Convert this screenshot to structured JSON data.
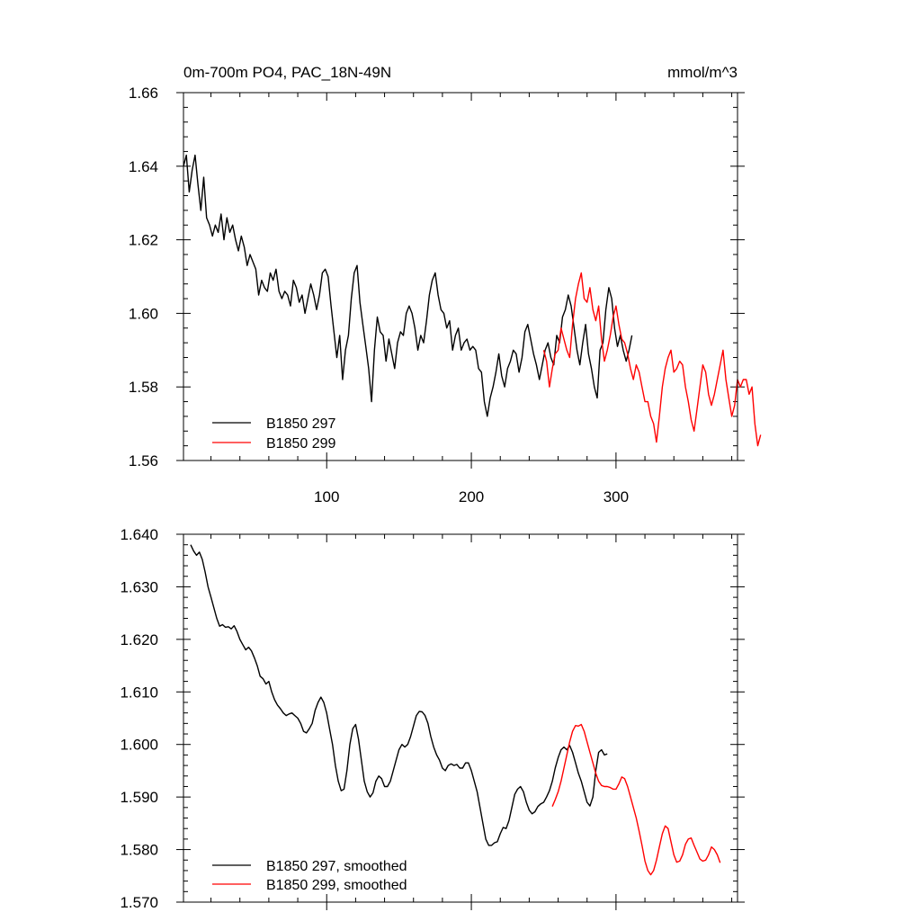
{
  "colors": {
    "run297": "#000000",
    "run299": "#ff0000",
    "axis": "#000000"
  },
  "chart_data": [
    {
      "type": "line",
      "title": "0m-700m PO4, PAC_18N-49N",
      "units": "mmol/m^3",
      "xlabel": "",
      "ylabel": "",
      "xlim": [
        1,
        384
      ],
      "ylim": [
        1.56,
        1.66
      ],
      "x_ticks": [
        100,
        200,
        300
      ],
      "x_tick_labels": [
        "100",
        "200",
        "300"
      ],
      "y_ticks": [
        1.56,
        1.58,
        1.6,
        1.62,
        1.64,
        1.66
      ],
      "y_tick_labels": [
        "1.56",
        "1.58",
        "1.60",
        "1.62",
        "1.64",
        "1.66"
      ],
      "grid": false,
      "legend_position": "bottom-left",
      "series": [
        {
          "name": "B1850 297",
          "color": "#000000",
          "x_start": 1,
          "x_step": 2,
          "values": [
            1.64,
            1.643,
            1.633,
            1.639,
            1.643,
            1.635,
            1.628,
            1.637,
            1.626,
            1.624,
            1.621,
            1.624,
            1.622,
            1.627,
            1.62,
            1.626,
            1.622,
            1.624,
            1.62,
            1.617,
            1.621,
            1.618,
            1.613,
            1.616,
            1.614,
            1.612,
            1.605,
            1.609,
            1.607,
            1.606,
            1.611,
            1.609,
            1.612,
            1.606,
            1.604,
            1.606,
            1.605,
            1.602,
            1.609,
            1.607,
            1.603,
            1.605,
            1.6,
            1.604,
            1.608,
            1.605,
            1.601,
            1.605,
            1.611,
            1.612,
            1.61,
            1.602,
            1.595,
            1.588,
            1.594,
            1.582,
            1.59,
            1.594,
            1.604,
            1.611,
            1.613,
            1.603,
            1.597,
            1.591,
            1.585,
            1.576,
            1.59,
            1.599,
            1.595,
            1.594,
            1.587,
            1.593,
            1.589,
            1.585,
            1.592,
            1.595,
            1.594,
            1.6,
            1.602,
            1.6,
            1.596,
            1.59,
            1.594,
            1.592,
            1.598,
            1.605,
            1.609,
            1.611,
            1.605,
            1.601,
            1.6,
            1.596,
            1.598,
            1.59,
            1.594,
            1.596,
            1.59,
            1.592,
            1.593,
            1.59,
            1.591,
            1.59,
            1.585,
            1.584,
            1.576,
            1.572,
            1.577,
            1.58,
            1.584,
            1.589,
            1.583,
            1.58,
            1.585,
            1.587,
            1.59,
            1.589,
            1.584,
            1.588,
            1.595,
            1.597,
            1.593,
            1.589,
            1.586,
            1.582,
            1.586,
            1.59,
            1.592,
            1.588,
            1.586,
            1.594,
            1.592,
            1.599,
            1.601,
            1.605,
            1.602,
            1.596,
            1.59,
            1.586,
            1.592,
            1.597,
            1.589,
            1.585,
            1.58,
            1.577,
            1.59,
            1.592,
            1.601,
            1.607,
            1.604,
            1.596,
            1.591,
            1.594,
            1.59,
            1.587,
            1.59,
            1.594
          ]
        },
        {
          "name": "B1850 299",
          "color": "#ff0000",
          "x_start": 250,
          "x_step": 2,
          "values": [
            1.59,
            1.587,
            1.58,
            1.585,
            1.589,
            1.59,
            1.596,
            1.593,
            1.59,
            1.588,
            1.597,
            1.604,
            1.608,
            1.611,
            1.604,
            1.603,
            1.607,
            1.601,
            1.598,
            1.602,
            1.593,
            1.587,
            1.59,
            1.594,
            1.599,
            1.602,
            1.597,
            1.593,
            1.592,
            1.589,
            1.585,
            1.582,
            1.586,
            1.584,
            1.58,
            1.576,
            1.576,
            1.572,
            1.57,
            1.565,
            1.572,
            1.58,
            1.585,
            1.588,
            1.59,
            1.584,
            1.585,
            1.587,
            1.586,
            1.58,
            1.576,
            1.571,
            1.568,
            1.574,
            1.58,
            1.586,
            1.584,
            1.578,
            1.575,
            1.578,
            1.582,
            1.586,
            1.59,
            1.582,
            1.577,
            1.572,
            1.575,
            1.582,
            1.58,
            1.582,
            1.582,
            1.578,
            1.58,
            1.57,
            1.564,
            1.567
          ]
        }
      ]
    },
    {
      "type": "line",
      "title": "",
      "xlabel": "",
      "ylabel": "",
      "xlim": [
        1,
        384
      ],
      "ylim": [
        1.57,
        1.64
      ],
      "x_ticks": [
        100,
        200,
        300
      ],
      "y_ticks": [
        1.57,
        1.58,
        1.59,
        1.6,
        1.61,
        1.62,
        1.63,
        1.64
      ],
      "y_tick_labels": [
        "1.570",
        "1.580",
        "1.590",
        "1.600",
        "1.610",
        "1.620",
        "1.630",
        "1.640"
      ],
      "grid": false,
      "legend_position": "bottom-left",
      "series": [
        {
          "name": "B1850 297, smoothed",
          "color": "#000000",
          "x_start": 6,
          "x_step": 2,
          "values": [
            1.638,
            1.6368,
            1.636,
            1.6366,
            1.6352,
            1.6328,
            1.63,
            1.628,
            1.626,
            1.624,
            1.6225,
            1.6228,
            1.6223,
            1.6224,
            1.622,
            1.6226,
            1.6215,
            1.62,
            1.619,
            1.618,
            1.6185,
            1.6178,
            1.6165,
            1.615,
            1.613,
            1.6125,
            1.6115,
            1.612,
            1.61,
            1.6085,
            1.6075,
            1.6068,
            1.606,
            1.6055,
            1.6058,
            1.606,
            1.6055,
            1.605,
            1.604,
            1.6025,
            1.6022,
            1.603,
            1.604,
            1.6065,
            1.608,
            1.609,
            1.608,
            1.606,
            1.603,
            1.6,
            1.596,
            1.593,
            1.5912,
            1.5915,
            1.595,
            1.6,
            1.603,
            1.6038,
            1.601,
            1.597,
            1.593,
            1.591,
            1.59,
            1.5908,
            1.593,
            1.594,
            1.5935,
            1.592,
            1.592,
            1.593,
            1.595,
            1.597,
            1.599,
            1.6,
            1.5995,
            1.6,
            1.6015,
            1.6035,
            1.6055,
            1.6063,
            1.6062,
            1.6055,
            1.604,
            1.6015,
            1.5995,
            1.598,
            1.597,
            1.5955,
            1.595,
            1.596,
            1.5963,
            1.596,
            1.5962,
            1.5955,
            1.5955,
            1.5965,
            1.5965,
            1.595,
            1.593,
            1.591,
            1.588,
            1.585,
            1.582,
            1.5808,
            1.5808,
            1.5813,
            1.5815,
            1.583,
            1.5842,
            1.584,
            1.5855,
            1.588,
            1.5905,
            1.5915,
            1.592,
            1.591,
            1.589,
            1.5875,
            1.5868,
            1.5872,
            1.5882,
            1.5887,
            1.589,
            1.59,
            1.5912,
            1.593,
            1.5955,
            1.5975,
            1.599,
            1.5995,
            1.599,
            1.5998,
            1.5985,
            1.5965,
            1.5945,
            1.593,
            1.591,
            1.589,
            1.5883,
            1.59,
            1.595,
            1.5985,
            1.599,
            1.598,
            1.5982
          ]
        },
        {
          "name": "B1850 299, smoothed",
          "color": "#ff0000",
          "x_start": 256,
          "x_step": 2,
          "values": [
            1.5882,
            1.5895,
            1.591,
            1.593,
            1.5955,
            1.598,
            1.6005,
            1.6025,
            1.6036,
            1.6035,
            1.6038,
            1.6025,
            1.6005,
            1.5985,
            1.5965,
            1.5945,
            1.593,
            1.5922,
            1.592,
            1.592,
            1.5918,
            1.5915,
            1.5915,
            1.5925,
            1.5938,
            1.5935,
            1.592,
            1.59,
            1.588,
            1.586,
            1.5835,
            1.5808,
            1.5778,
            1.576,
            1.5752,
            1.576,
            1.578,
            1.5805,
            1.583,
            1.5845,
            1.584,
            1.5815,
            1.579,
            1.5776,
            1.5778,
            1.579,
            1.581,
            1.582,
            1.5822,
            1.5808,
            1.5795,
            1.5782,
            1.5778,
            1.578,
            1.579,
            1.5805,
            1.58,
            1.579,
            1.5775
          ]
        }
      ]
    }
  ]
}
